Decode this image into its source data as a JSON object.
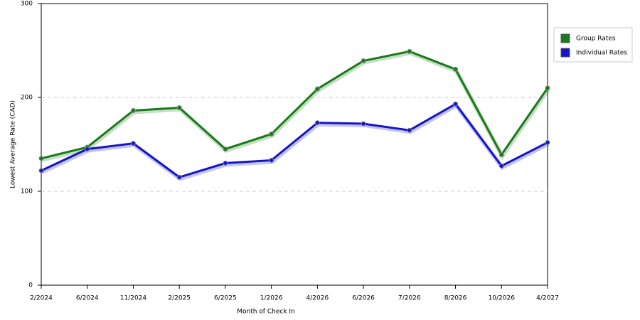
{
  "chart_data": {
    "type": "line",
    "x_label": "Month of Check In",
    "y_label": "Lowest Average Rate (CAD)",
    "categories": [
      "2/2024",
      "6/2024",
      "11/2024",
      "2/2025",
      "6/2025",
      "1/2026",
      "4/2026",
      "6/2026",
      "7/2026",
      "8/2026",
      "10/2026",
      "4/2027"
    ],
    "series": [
      {
        "name": "Group Rates",
        "color": "#1a7a1a",
        "values": [
          135,
          147,
          186,
          189,
          145,
          161,
          209,
          239,
          249,
          230,
          139,
          210
        ]
      },
      {
        "name": "Individual Rates",
        "color": "#1414c8",
        "values": [
          122,
          145,
          151,
          115,
          130,
          133,
          173,
          172,
          165,
          193,
          127,
          152
        ]
      }
    ],
    "ylim": [
      0,
      300
    ],
    "yticks": [
      0,
      100,
      200,
      300
    ],
    "grid": true,
    "legend": "right"
  }
}
